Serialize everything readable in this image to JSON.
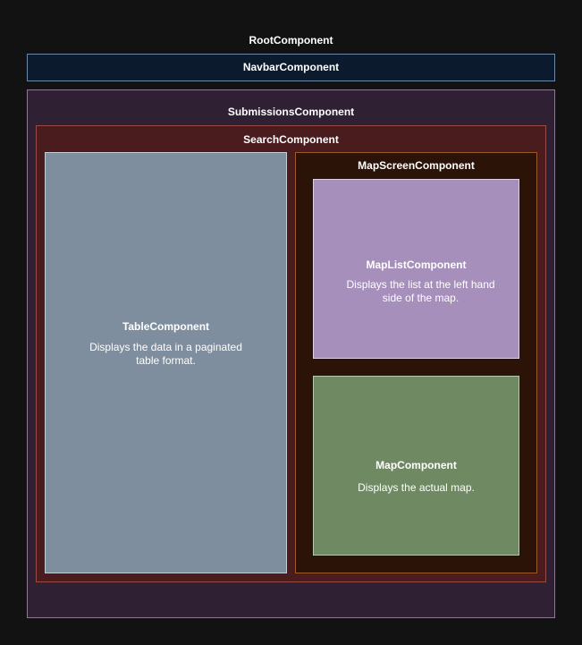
{
  "root": {
    "title": "RootComponent"
  },
  "navbar": {
    "title": "NavbarComponent"
  },
  "submissions": {
    "title": "SubmissionsComponent"
  },
  "search": {
    "title": "SearchComponent"
  },
  "table": {
    "title": "TableComponent",
    "description": "Displays the data in a paginated table format."
  },
  "map_screen": {
    "title": "MapScreenComponent"
  },
  "map_list": {
    "title": "MapListComponent",
    "description": "Displays the list at the left hand side of the map."
  },
  "map": {
    "title": "MapComponent",
    "description": "Displays the actual map."
  },
  "colors": {
    "background": "#121212",
    "navbar": "#0b1a2c",
    "submissions": "#2f2133",
    "search": "#4a1c1e",
    "table": "#7f8e9e",
    "map_screen": "#2b1308",
    "map_list": "#a68fbb",
    "map": "#6f8a63"
  }
}
